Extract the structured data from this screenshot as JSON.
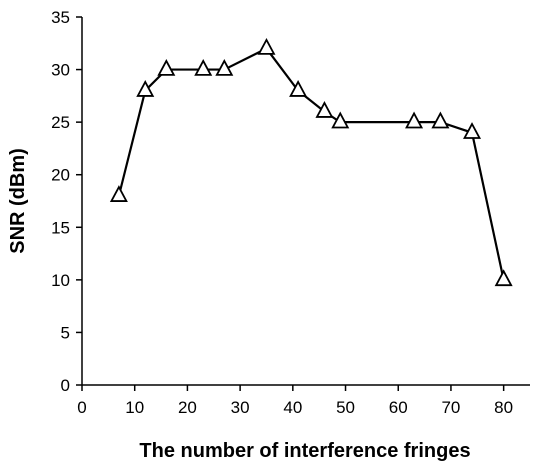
{
  "chart_data": {
    "type": "line",
    "title": "",
    "xlabel": "The number of interference fringes",
    "ylabel": "SNR (dBm)",
    "xlim": [
      0,
      85
    ],
    "ylim": [
      0,
      35
    ],
    "x_ticks": [
      0,
      10,
      20,
      30,
      40,
      50,
      60,
      70,
      80
    ],
    "y_ticks": [
      0,
      5,
      10,
      15,
      20,
      25,
      30,
      35
    ],
    "grid": false,
    "legend": "none",
    "marker": "triangle-open",
    "line_color": "#000000",
    "series": [
      {
        "x": [
          7,
          12,
          16,
          23,
          27,
          35,
          41,
          46,
          49,
          63,
          68,
          74,
          80
        ],
        "y": [
          18,
          28,
          30,
          30,
          30,
          32,
          28,
          26,
          25,
          25,
          25,
          24,
          10
        ]
      }
    ]
  }
}
